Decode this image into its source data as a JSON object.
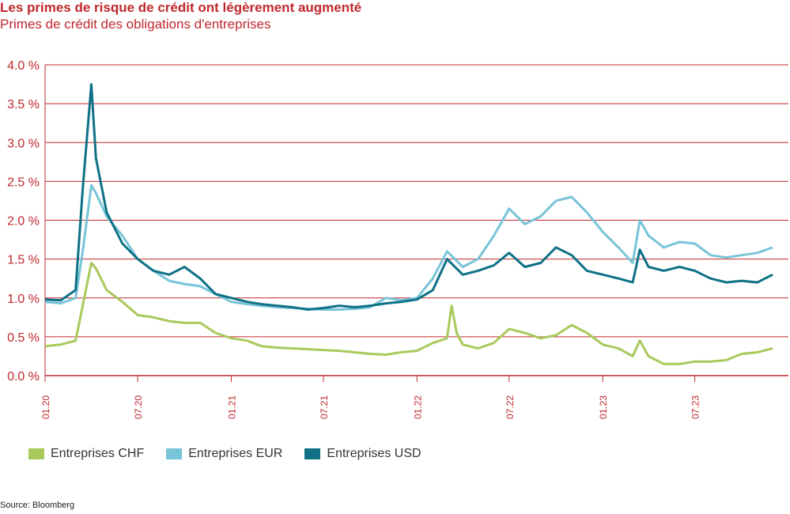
{
  "header": {
    "title": "Les primes de risque de crédit ont légèrement augmenté",
    "subtitle": "Primes de crédit des obligations d'entreprises"
  },
  "source": "Source: Bloomberg",
  "colors": {
    "chf": "#a9c95c",
    "eur": "#78c4d8",
    "usd": "#0e7186",
    "grid": "#c0282d",
    "axis_text": "#c0282d"
  },
  "chart_data": {
    "type": "line",
    "title": "Les primes de risque de crédit ont légèrement augmenté",
    "subtitle": "Primes de crédit des obligations d'entreprises",
    "xlabel": "",
    "ylabel": "",
    "ylim": [
      0,
      4
    ],
    "xlim": [
      "2020-01",
      "2023-12"
    ],
    "yticks": [
      "0.0 %",
      "0.5 %",
      "1.0 %",
      "1.5 %",
      "2.0 %",
      "2.5 %",
      "3.0 %",
      "3.5 %",
      "4.0 %"
    ],
    "xticks": [
      {
        "label": "01.20",
        "x": "2020-01"
      },
      {
        "label": "07.20",
        "x": "2020-07"
      },
      {
        "label": "01.21",
        "x": "2021-01"
      },
      {
        "label": "07.21",
        "x": "2021-07"
      },
      {
        "label": "01.22",
        "x": "2022-01"
      },
      {
        "label": "07.22",
        "x": "2022-07"
      },
      {
        "label": "01.23",
        "x": "2023-01"
      },
      {
        "label": "07.23",
        "x": "2023-07"
      }
    ],
    "grid": true,
    "legend": "bottom",
    "series": [
      {
        "name": "Entreprises CHF",
        "color": "#a9c95c",
        "points": [
          [
            "2020-01",
            0.38
          ],
          [
            "2020-02",
            0.4
          ],
          [
            "2020-03",
            0.45
          ],
          [
            "2020-03-15",
            0.9
          ],
          [
            "2020-04",
            1.45
          ],
          [
            "2020-04-10",
            1.38
          ],
          [
            "2020-05",
            1.1
          ],
          [
            "2020-06",
            0.95
          ],
          [
            "2020-07",
            0.78
          ],
          [
            "2020-08",
            0.75
          ],
          [
            "2020-09",
            0.7
          ],
          [
            "2020-10",
            0.68
          ],
          [
            "2020-11",
            0.68
          ],
          [
            "2020-12",
            0.55
          ],
          [
            "2021-01",
            0.48
          ],
          [
            "2021-02",
            0.45
          ],
          [
            "2021-03",
            0.38
          ],
          [
            "2021-04",
            0.36
          ],
          [
            "2021-05",
            0.35
          ],
          [
            "2021-06",
            0.34
          ],
          [
            "2021-07",
            0.33
          ],
          [
            "2021-08",
            0.32
          ],
          [
            "2021-09",
            0.3
          ],
          [
            "2021-10",
            0.28
          ],
          [
            "2021-11",
            0.27
          ],
          [
            "2021-12",
            0.3
          ],
          [
            "2022-01",
            0.32
          ],
          [
            "2022-02",
            0.42
          ],
          [
            "2022-03",
            0.48
          ],
          [
            "2022-03-10",
            0.9
          ],
          [
            "2022-03-20",
            0.55
          ],
          [
            "2022-04",
            0.4
          ],
          [
            "2022-05",
            0.35
          ],
          [
            "2022-06",
            0.42
          ],
          [
            "2022-07",
            0.6
          ],
          [
            "2022-08",
            0.55
          ],
          [
            "2022-09",
            0.48
          ],
          [
            "2022-10",
            0.52
          ],
          [
            "2022-11",
            0.65
          ],
          [
            "2022-12",
            0.55
          ],
          [
            "2023-01",
            0.4
          ],
          [
            "2023-02",
            0.35
          ],
          [
            "2023-03",
            0.25
          ],
          [
            "2023-03-15",
            0.45
          ],
          [
            "2023-04",
            0.25
          ],
          [
            "2023-05",
            0.15
          ],
          [
            "2023-06",
            0.15
          ],
          [
            "2023-07",
            0.18
          ],
          [
            "2023-08",
            0.18
          ],
          [
            "2023-09",
            0.2
          ],
          [
            "2023-10",
            0.28
          ],
          [
            "2023-11",
            0.3
          ],
          [
            "2023-12",
            0.35
          ]
        ]
      },
      {
        "name": "Entreprises EUR",
        "color": "#78c4d8",
        "points": [
          [
            "2020-01",
            0.95
          ],
          [
            "2020-02",
            0.93
          ],
          [
            "2020-03",
            1.0
          ],
          [
            "2020-03-15",
            1.6
          ],
          [
            "2020-04",
            2.45
          ],
          [
            "2020-04-10",
            2.35
          ],
          [
            "2020-05",
            2.05
          ],
          [
            "2020-06",
            1.8
          ],
          [
            "2020-07",
            1.5
          ],
          [
            "2020-08",
            1.35
          ],
          [
            "2020-09",
            1.22
          ],
          [
            "2020-10",
            1.18
          ],
          [
            "2020-11",
            1.15
          ],
          [
            "2020-12",
            1.05
          ],
          [
            "2021-01",
            0.95
          ],
          [
            "2021-02",
            0.92
          ],
          [
            "2021-03",
            0.9
          ],
          [
            "2021-04",
            0.88
          ],
          [
            "2021-05",
            0.87
          ],
          [
            "2021-06",
            0.86
          ],
          [
            "2021-07",
            0.85
          ],
          [
            "2021-08",
            0.85
          ],
          [
            "2021-09",
            0.86
          ],
          [
            "2021-10",
            0.88
          ],
          [
            "2021-11",
            1.0
          ],
          [
            "2021-12",
            0.97
          ],
          [
            "2022-01",
            1.0
          ],
          [
            "2022-02",
            1.25
          ],
          [
            "2022-03",
            1.6
          ],
          [
            "2022-04",
            1.4
          ],
          [
            "2022-05",
            1.5
          ],
          [
            "2022-06",
            1.8
          ],
          [
            "2022-07",
            2.15
          ],
          [
            "2022-08",
            1.95
          ],
          [
            "2022-09",
            2.05
          ],
          [
            "2022-10",
            2.25
          ],
          [
            "2022-11",
            2.3
          ],
          [
            "2022-12",
            2.1
          ],
          [
            "2023-01",
            1.85
          ],
          [
            "2023-02",
            1.65
          ],
          [
            "2023-03",
            1.45
          ],
          [
            "2023-03-15",
            2.0
          ],
          [
            "2023-04",
            1.8
          ],
          [
            "2023-05",
            1.65
          ],
          [
            "2023-06",
            1.72
          ],
          [
            "2023-07",
            1.7
          ],
          [
            "2023-08",
            1.55
          ],
          [
            "2023-09",
            1.52
          ],
          [
            "2023-10",
            1.55
          ],
          [
            "2023-11",
            1.58
          ],
          [
            "2023-12",
            1.65
          ]
        ]
      },
      {
        "name": "Entreprises USD",
        "color": "#0e7186",
        "points": [
          [
            "2020-01",
            0.98
          ],
          [
            "2020-02",
            0.97
          ],
          [
            "2020-03",
            1.1
          ],
          [
            "2020-03-15",
            2.4
          ],
          [
            "2020-04",
            3.75
          ],
          [
            "2020-04-10",
            2.8
          ],
          [
            "2020-05",
            2.1
          ],
          [
            "2020-06",
            1.7
          ],
          [
            "2020-07",
            1.5
          ],
          [
            "2020-08",
            1.35
          ],
          [
            "2020-09",
            1.3
          ],
          [
            "2020-10",
            1.4
          ],
          [
            "2020-11",
            1.25
          ],
          [
            "2020-12",
            1.05
          ],
          [
            "2021-01",
            1.0
          ],
          [
            "2021-02",
            0.95
          ],
          [
            "2021-03",
            0.92
          ],
          [
            "2021-04",
            0.9
          ],
          [
            "2021-05",
            0.88
          ],
          [
            "2021-06",
            0.85
          ],
          [
            "2021-07",
            0.87
          ],
          [
            "2021-08",
            0.9
          ],
          [
            "2021-09",
            0.88
          ],
          [
            "2021-10",
            0.9
          ],
          [
            "2021-11",
            0.93
          ],
          [
            "2021-12",
            0.95
          ],
          [
            "2022-01",
            0.98
          ],
          [
            "2022-02",
            1.1
          ],
          [
            "2022-03",
            1.5
          ],
          [
            "2022-04",
            1.3
          ],
          [
            "2022-05",
            1.35
          ],
          [
            "2022-06",
            1.42
          ],
          [
            "2022-07",
            1.58
          ],
          [
            "2022-08",
            1.4
          ],
          [
            "2022-09",
            1.45
          ],
          [
            "2022-10",
            1.65
          ],
          [
            "2022-11",
            1.55
          ],
          [
            "2022-12",
            1.35
          ],
          [
            "2023-01",
            1.3
          ],
          [
            "2023-02",
            1.25
          ],
          [
            "2023-03",
            1.2
          ],
          [
            "2023-03-15",
            1.62
          ],
          [
            "2023-04",
            1.4
          ],
          [
            "2023-05",
            1.35
          ],
          [
            "2023-06",
            1.4
          ],
          [
            "2023-07",
            1.35
          ],
          [
            "2023-08",
            1.25
          ],
          [
            "2023-09",
            1.2
          ],
          [
            "2023-10",
            1.22
          ],
          [
            "2023-11",
            1.2
          ],
          [
            "2023-12",
            1.3
          ]
        ]
      }
    ]
  }
}
